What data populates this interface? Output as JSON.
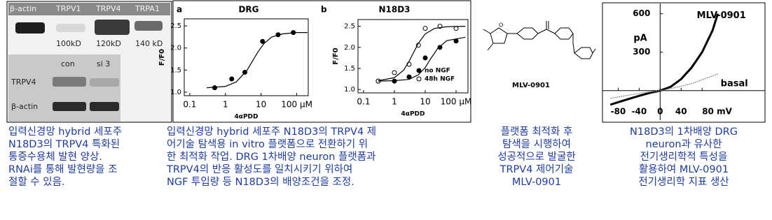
{
  "blot": {
    "top_labels": [
      "β-actin",
      "TRPV1",
      "TRPV4",
      "TRPA1"
    ],
    "sizes": [
      "100kD",
      "120kD",
      "140 kD"
    ],
    "lanes": [
      "con",
      "si 3"
    ],
    "row_labels": [
      "TRPV4",
      "β-actin"
    ]
  },
  "chart_data": [
    {
      "type": "scatter",
      "panel": "a",
      "title": "DRG",
      "y_label": "F/F0",
      "x_label": "4αPDD",
      "xscale": "log",
      "xlim": [
        0.07,
        210
      ],
      "ylim": [
        0.92,
        2.66
      ],
      "xticks": [
        0.1,
        1,
        10,
        {
          "value": 100,
          "label": "100 μM"
        }
      ],
      "yticks": [
        {
          "value": 1,
          "label": "1.0"
        },
        1.5,
        {
          "value": 2,
          "label": "2.0"
        },
        2.5
      ],
      "series": [
        {
          "color": "#000000",
          "marker": "filled",
          "x": [
            0.5,
            1.5,
            3.5,
            11,
            30,
            80
          ],
          "values": [
            1.1,
            1.3,
            1.45,
            2.15,
            2.3,
            2.35
          ]
        },
        {
          "color": "#000000",
          "style": "line",
          "x": [
            0.3,
            1,
            2,
            4,
            6,
            8,
            12,
            20,
            40,
            100,
            200
          ],
          "values": [
            1.1,
            1.13,
            1.23,
            1.49,
            1.73,
            1.9,
            2.1,
            2.25,
            2.32,
            2.35,
            2.35
          ]
        }
      ]
    },
    {
      "type": "scatter",
      "panel": "b",
      "title": "N18D3",
      "y_label": "F/F0",
      "x_label": "4αPDD",
      "xscale": "log",
      "legend": "right",
      "xlim": [
        0.066,
        243
      ],
      "ylim": [
        0.92,
        2.66
      ],
      "xticks": [
        0.1,
        1,
        10,
        {
          "value": 100,
          "label": "100 μM"
        }
      ],
      "yticks": [
        {
          "value": 1,
          "label": "1.0"
        },
        1.5,
        {
          "value": 2,
          "label": "2.0"
        },
        2.5
      ],
      "series": [
        {
          "name": "no NGF",
          "color": "#000000",
          "marker": "filled",
          "x": [
            0.3,
            1,
            3,
            10,
            30,
            100
          ],
          "values": [
            1.2,
            1.2,
            1.3,
            1.75,
            2.0,
            2.15
          ]
        },
        {
          "name": "48h NGF",
          "color": "#000000",
          "marker": "open",
          "x": [
            0.3,
            1,
            3,
            6,
            10,
            30,
            100
          ],
          "values": [
            1.2,
            1.4,
            1.6,
            2.05,
            2.45,
            2.5,
            2.45
          ]
        },
        {
          "color": "#000000",
          "style": "line",
          "x": [
            0.3,
            1,
            3,
            6,
            10,
            15,
            25,
            50,
            200
          ],
          "values": [
            1.2,
            1.21,
            1.24,
            1.35,
            1.52,
            1.73,
            1.97,
            2.16,
            2.24
          ]
        },
        {
          "color": "#000000",
          "style": "line",
          "x": [
            0.3,
            1,
            2,
            3,
            4,
            6,
            10,
            20,
            50,
            200
          ],
          "values": [
            1.21,
            1.28,
            1.46,
            1.67,
            1.85,
            2.1,
            2.32,
            2.45,
            2.49,
            2.5
          ]
        }
      ]
    },
    {
      "type": "line",
      "y_label": "pA",
      "xlim": [
        -110,
        200
      ],
      "ylim": [
        -230,
        680
      ],
      "xticks": [
        -80,
        -40,
        0,
        40,
        {
          "value": 80,
          "label": "80 mV"
        }
      ],
      "yticks": [
        300,
        600
      ],
      "series": [
        {
          "name": "MLV-0901",
          "color": "#000000",
          "x": [
            -95,
            -80,
            -60,
            -40,
            -20,
            0,
            20,
            40,
            60,
            80,
            100,
            110
          ],
          "values": [
            -110,
            -90,
            -65,
            -40,
            -18,
            0,
            30,
            90,
            180,
            300,
            470,
            600
          ]
        },
        {
          "name": "basal",
          "color": "#888888",
          "x": [
            -95,
            -60,
            -30,
            0,
            30,
            60,
            90,
            110
          ],
          "values": [
            -60,
            -35,
            -15,
            0,
            25,
            55,
            100,
            130
          ]
        }
      ]
    }
  ],
  "compound": {
    "name": "MLV-0901"
  },
  "captions": [
    [
      "입력신경망 hybrid 세포주",
      "N18D3의 TRPV4 특화된",
      "통증수용체 발현 양상.",
      "RNAi를 통해 발현량을 조",
      "절할 수 있음."
    ],
    [
      "입력신경망 hybrid 세포주 N18D3의 TRPV4 제",
      "어기술 탐색용 in vitro 플랫폼으로 전환하기 위",
      "한 최적화 작업. DRG 1차배양 neuron 플랫폼과",
      "TRPV4의 반응 활성도를 일치시키기 위하여",
      "NGF 투입량 등 N18D3의 배양조건을 조정."
    ],
    [
      "플랫폼 최적화 후",
      "탐색을 시행하여",
      "성공적으로 발굴한",
      "TRPV4 제어기술",
      "MLV-0901"
    ],
    [
      "N18D3의 1차배양 DRG",
      "neuron과 유사한",
      "전기생리학적 특성을",
      "활용하여 MLV-0901",
      "전기생리학 지표 생산"
    ]
  ]
}
